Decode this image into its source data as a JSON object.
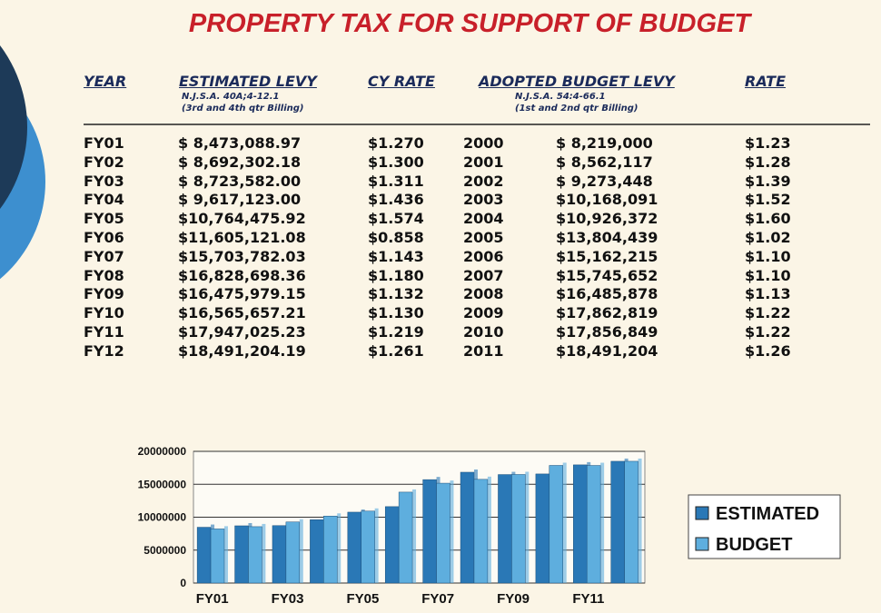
{
  "title": "PROPERTY TAX FOR SUPPORT OF BUDGET",
  "table": {
    "headers": [
      {
        "label": "YEAR"
      },
      {
        "label": "ESTIMATED LEVY",
        "notes": [
          "N.J.S.A. 40A;4-12.1",
          "(3rd and 4th qtr Billing)"
        ]
      },
      {
        "label": "CY RATE"
      },
      {
        "label": "ADOPTED BUDGET LEVY",
        "notes": [
          "N.J.S.A. 54:4-66.1",
          "(1st and 2nd qtr Billing)"
        ]
      },
      {
        "label": "RATE"
      }
    ],
    "rows": [
      [
        "FY01",
        "$ 8,473,088.97",
        "$1.270",
        "2000",
        "$ 8,219,000",
        "$1.23"
      ],
      [
        "FY02",
        "$ 8,692,302.18",
        "$1.300",
        "2001",
        "$ 8,562,117",
        "$1.28"
      ],
      [
        "FY03",
        "$ 8,723,582.00",
        "$1.311",
        "2002",
        "$ 9,273,448",
        "$1.39"
      ],
      [
        "FY04",
        "$ 9,617,123.00",
        "$1.436",
        "2003",
        "$10,168,091",
        "$1.52"
      ],
      [
        "FY05",
        "$10,764,475.92",
        "$1.574",
        "2004",
        "$10,926,372",
        "$1.60"
      ],
      [
        "FY06",
        "$11,605,121.08",
        "$0.858",
        "2005",
        "$13,804,439",
        "$1.02"
      ],
      [
        "FY07",
        "$15,703,782.03",
        "$1.143",
        "2006",
        "$15,162,215",
        "$1.10"
      ],
      [
        "FY08",
        "$16,828,698.36",
        "$1.180",
        "2007",
        "$15,745,652",
        "$1.10"
      ],
      [
        "FY09",
        "$16,475,979.15",
        "$1.132",
        "2008",
        "$16,485,878",
        "$1.13"
      ],
      [
        "FY10",
        "$16,565,657.21",
        "$1.130",
        "2009",
        "$17,862,819",
        "$1.22"
      ],
      [
        "FY11",
        "$17,947,025.23",
        "$1.219",
        "2010",
        "$17,856,849",
        "$1.22"
      ],
      [
        "FY12",
        "$18,491,204.19",
        "$1.261",
        "2011",
        "$18,491,204",
        "$1.26"
      ]
    ]
  },
  "chart_data": {
    "type": "bar",
    "categories": [
      "FY01",
      null,
      "FY03",
      null,
      "FY05",
      null,
      "FY07",
      null,
      "FY09",
      null,
      "FY11",
      null
    ],
    "series": [
      {
        "name": "ESTIMATED",
        "color": "#2a78b6",
        "values": [
          8473088.97,
          8692302.18,
          8723582.0,
          9617123.0,
          10764475.92,
          11605121.08,
          15703782.03,
          16828698.36,
          16475979.15,
          16565657.21,
          17947025.23,
          18491204.19
        ]
      },
      {
        "name": "BUDGET",
        "color": "#5eaede",
        "values": [
          8219000,
          8562117,
          9273448,
          10168091,
          10926372,
          13804439,
          15162215,
          15745652,
          16485878,
          17862819,
          17856849,
          18491204
        ]
      }
    ],
    "ylim": [
      0,
      20000000
    ],
    "yticks": [
      0,
      5000000,
      10000000,
      15000000,
      20000000
    ],
    "grid": true,
    "legend": "right"
  }
}
